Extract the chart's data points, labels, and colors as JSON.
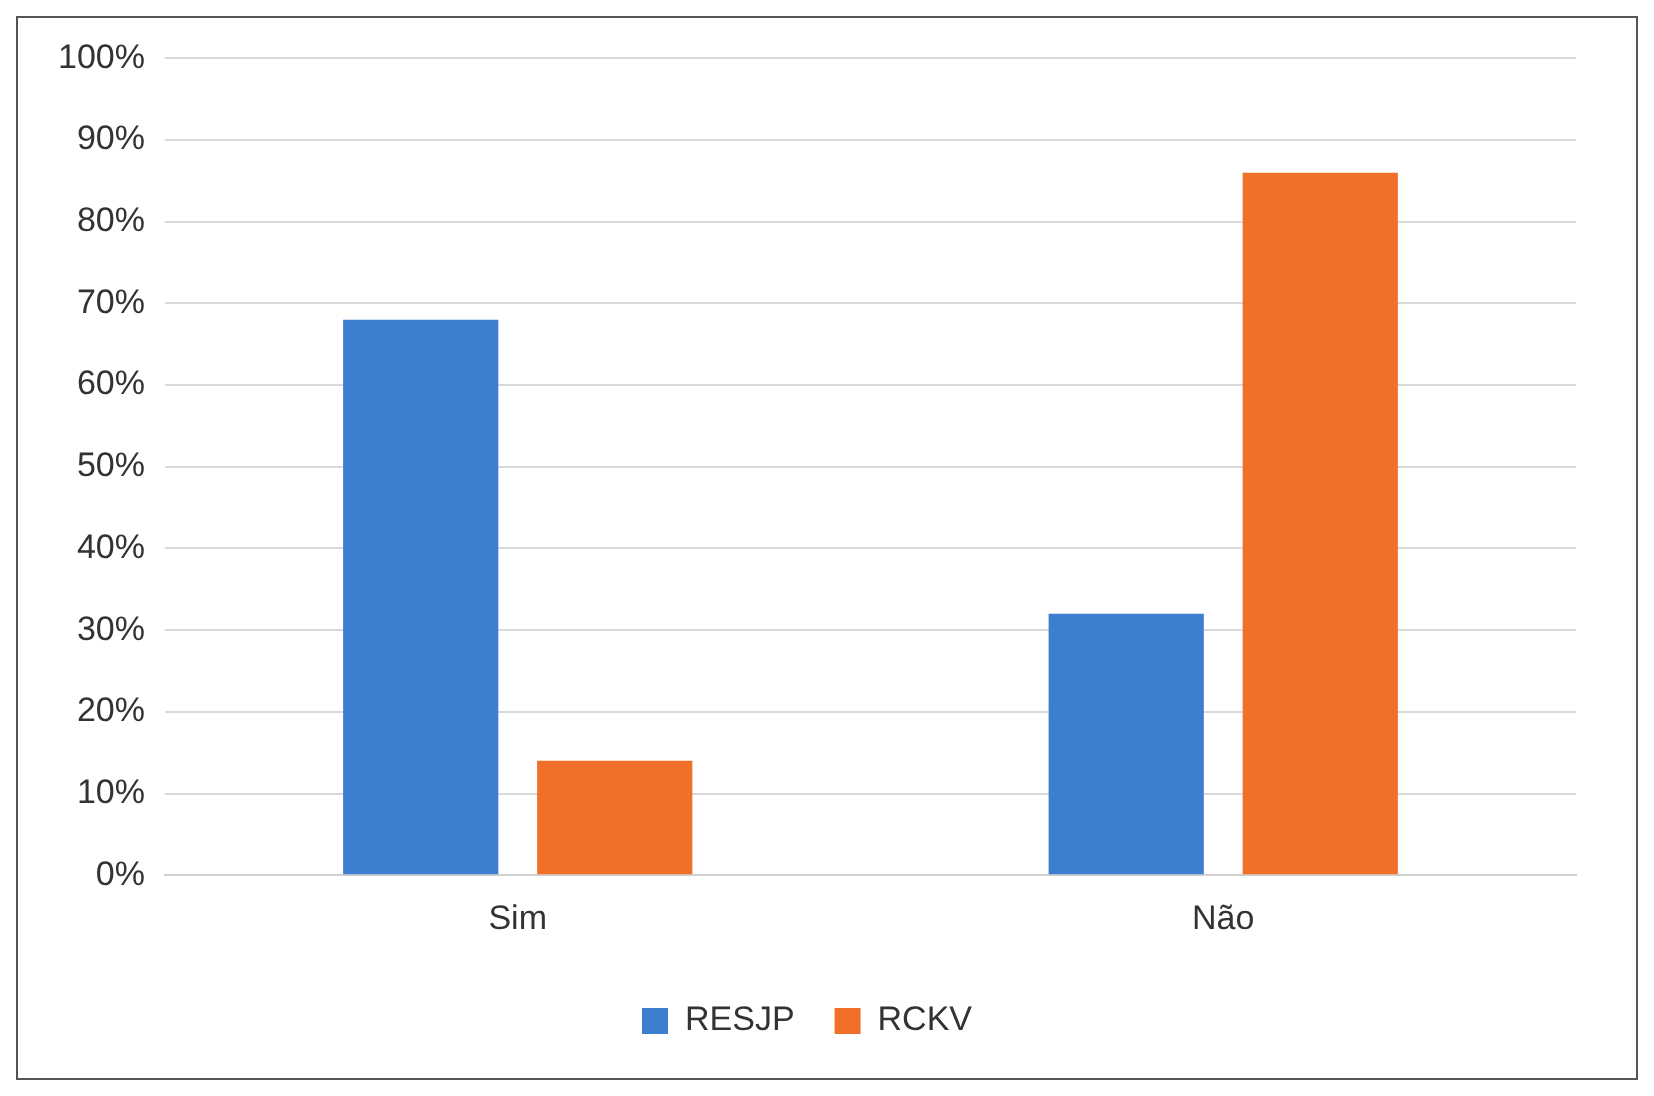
{
  "chart_data": {
    "type": "bar",
    "categories": [
      "Sim",
      "Não"
    ],
    "series": [
      {
        "name": "RESJP",
        "color": "#3c7fd0",
        "values": [
          68,
          32
        ]
      },
      {
        "name": "RCKV",
        "color": "#f0702a",
        "values": [
          14,
          86
        ]
      }
    ],
    "ylim": [
      0,
      100
    ],
    "yticks": [
      {
        "value": 0,
        "label": "0%"
      },
      {
        "value": 10,
        "label": "10%"
      },
      {
        "value": 20,
        "label": "20%"
      },
      {
        "value": 30,
        "label": "30%"
      },
      {
        "value": 40,
        "label": "40%"
      },
      {
        "value": 50,
        "label": "50%"
      },
      {
        "value": 60,
        "label": "60%"
      },
      {
        "value": 70,
        "label": "70%"
      },
      {
        "value": 80,
        "label": "80%"
      },
      {
        "value": 90,
        "label": "90%"
      },
      {
        "value": 100,
        "label": "100%"
      }
    ],
    "grid": "y",
    "legend": "bottom"
  }
}
